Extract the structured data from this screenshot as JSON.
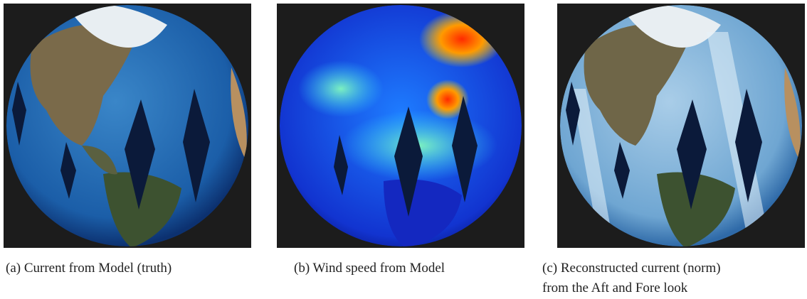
{
  "panels": [
    {
      "caption_lines": [
        "(a) Current from Model (truth)"
      ]
    },
    {
      "caption_lines": [
        "(b) Wind speed from Model"
      ]
    },
    {
      "caption_lines": [
        "(c) Reconstructed current (norm)",
        "from the Aft and Fore look"
      ]
    }
  ]
}
